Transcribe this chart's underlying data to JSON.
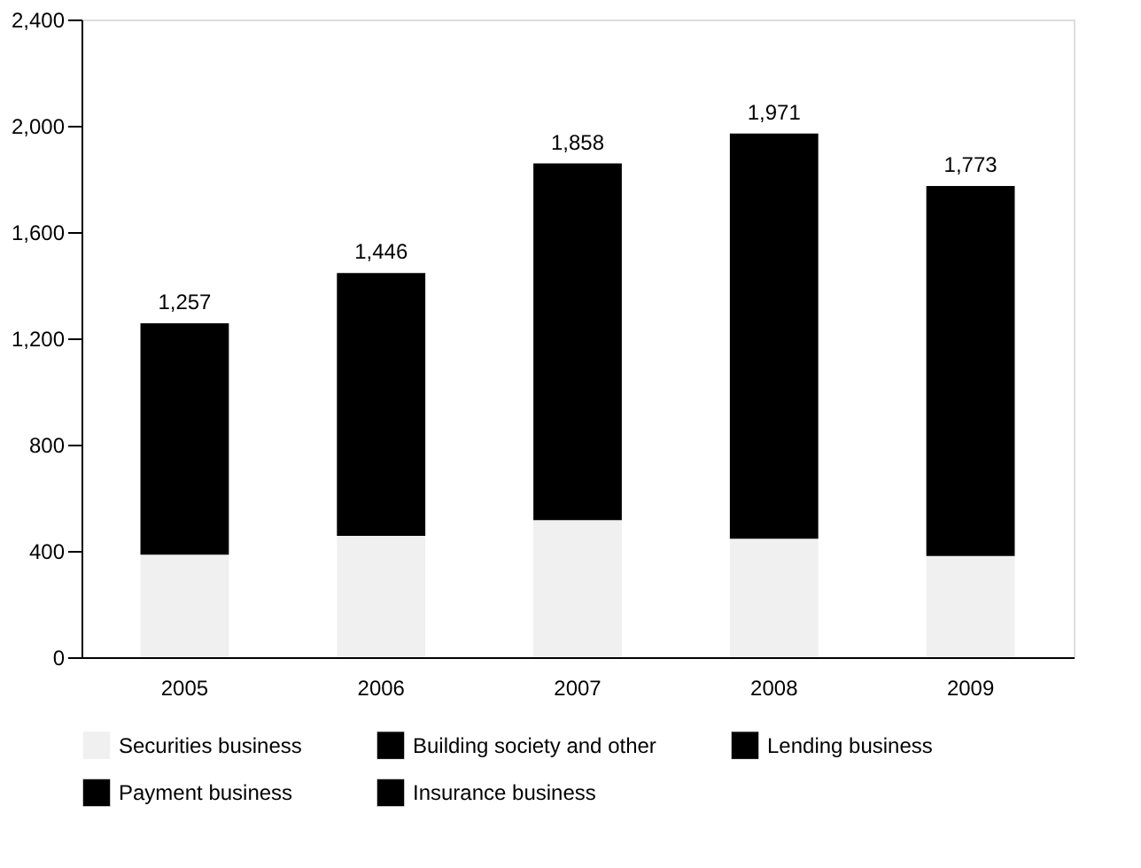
{
  "chart_data": {
    "type": "bar",
    "stacked": true,
    "categories": [
      "2005",
      "2006",
      "2007",
      "2008",
      "2009"
    ],
    "series": [
      {
        "name": "Securities business",
        "color": "#f0f0f0",
        "values": [
          386,
          457,
          516,
          446,
          381
        ]
      },
      {
        "name": "Building society and other",
        "color": "#000000",
        "values": [
          null,
          null,
          null,
          null,
          null
        ]
      },
      {
        "name": "Lending business",
        "color": "#000000",
        "values": [
          871,
          989,
          1342,
          1525,
          1392
        ]
      },
      {
        "name": "Payment business",
        "color": "#000000",
        "values": [
          null,
          null,
          null,
          null,
          null
        ]
      },
      {
        "name": "Insurance business",
        "color": "#000000",
        "values": [
          null,
          null,
          null,
          null,
          null
        ]
      }
    ],
    "totals": [
      "1,257",
      "1,446",
      "1,858",
      "1,971",
      "1,773"
    ],
    "ylim": [
      0,
      2400
    ],
    "yticks": [
      0,
      400,
      800,
      {
        "value": 1200,
        "label": "1,200"
      },
      {
        "value": 1600,
        "label": "1,600"
      },
      {
        "value": 2000,
        "label": "2,000"
      },
      {
        "value": 2400,
        "label": "2,400"
      }
    ],
    "grid": false,
    "legend": "bottom"
  }
}
